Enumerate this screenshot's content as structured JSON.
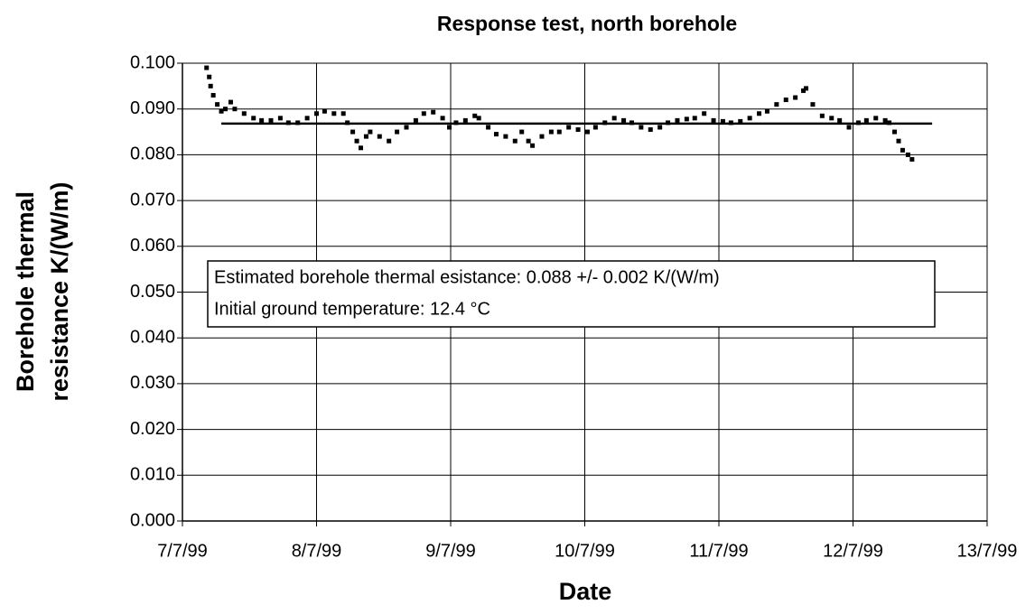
{
  "chart_data": {
    "type": "scatter",
    "title": "Response test, north borehole",
    "x_label": "Date",
    "y_label": [
      "Borehole thermal",
      "resistance K/(W/m)"
    ],
    "annotations": [
      "Estimated borehole thermal esistance: 0.088 +/- 0.002 K/(W/m)",
      "Initial ground temperature: 12.4 °C"
    ],
    "xlim": [
      7,
      13
    ],
    "xticks": [
      {
        "value": 7,
        "label": "7/7/99"
      },
      {
        "value": 8,
        "label": "8/7/99"
      },
      {
        "value": 9,
        "label": "9/7/99"
      },
      {
        "value": 10,
        "label": "10/7/99"
      },
      {
        "value": 11,
        "label": "11/7/99"
      },
      {
        "value": 12,
        "label": "12/7/99"
      },
      {
        "value": 13,
        "label": "13/7/99"
      }
    ],
    "ylim": [
      0,
      0.1
    ],
    "yticks": [
      {
        "value": 0,
        "label": "0.000"
      },
      {
        "value": 0.01,
        "label": "0.010"
      },
      {
        "value": 0.02,
        "label": "0.020"
      },
      {
        "value": 0.03,
        "label": "0.030"
      },
      {
        "value": 0.04,
        "label": "0.040"
      },
      {
        "value": 0.05,
        "label": "0.050"
      },
      {
        "value": 0.06,
        "label": "0.060"
      },
      {
        "value": 0.07,
        "label": "0.070"
      },
      {
        "value": 0.08,
        "label": "0.080"
      },
      {
        "value": 0.09,
        "label": "0.090"
      },
      {
        "value": 0.1,
        "label": "0.100"
      }
    ],
    "grid": true,
    "series": [
      {
        "color": "#000000",
        "marker": "square",
        "x": [
          7.18,
          7.2,
          7.21,
          7.23,
          7.26,
          7.29,
          7.32,
          7.36,
          7.39,
          7.46,
          7.53,
          7.59,
          7.66,
          7.73,
          7.79,
          7.86,
          7.93,
          8.0,
          8.06,
          8.13,
          8.2,
          8.23,
          8.27,
          8.3,
          8.33,
          8.37,
          8.4,
          8.47,
          8.54,
          8.6,
          8.67,
          8.74,
          8.8,
          8.87,
          8.94,
          8.99,
          9.04,
          9.11,
          9.18,
          9.21,
          9.28,
          9.34,
          9.41,
          9.48,
          9.53,
          9.58,
          9.61,
          9.68,
          9.75,
          9.81,
          9.88,
          9.95,
          10.02,
          10.08,
          10.15,
          10.22,
          10.29,
          10.35,
          10.42,
          10.49,
          10.56,
          10.62,
          10.69,
          10.76,
          10.82,
          10.89,
          10.96,
          11.03,
          11.09,
          11.16,
          11.23,
          11.3,
          11.36,
          11.43,
          11.5,
          11.57,
          11.63,
          11.65,
          11.7,
          11.77,
          11.84,
          11.9,
          11.97,
          12.04,
          12.1,
          12.17,
          12.24,
          12.27,
          12.31,
          12.34,
          12.37,
          12.41,
          12.44
        ],
        "values": [
          0.099,
          0.097,
          0.095,
          0.093,
          0.091,
          0.0895,
          0.09,
          0.0915,
          0.09,
          0.089,
          0.088,
          0.0875,
          0.0875,
          0.088,
          0.087,
          0.087,
          0.088,
          0.089,
          0.0895,
          0.089,
          0.089,
          0.087,
          0.085,
          0.083,
          0.0815,
          0.084,
          0.085,
          0.084,
          0.083,
          0.085,
          0.086,
          0.0875,
          0.089,
          0.0893,
          0.088,
          0.086,
          0.087,
          0.0875,
          0.0885,
          0.088,
          0.086,
          0.0845,
          0.084,
          0.083,
          0.085,
          0.083,
          0.082,
          0.084,
          0.085,
          0.085,
          0.086,
          0.0855,
          0.085,
          0.086,
          0.087,
          0.088,
          0.0875,
          0.087,
          0.086,
          0.0855,
          0.086,
          0.087,
          0.0875,
          0.0878,
          0.088,
          0.089,
          0.0875,
          0.0873,
          0.087,
          0.0873,
          0.088,
          0.089,
          0.0895,
          0.091,
          0.092,
          0.0925,
          0.094,
          0.0945,
          0.091,
          0.0885,
          0.088,
          0.0875,
          0.086,
          0.087,
          0.0875,
          0.088,
          0.0875,
          0.087,
          0.085,
          0.083,
          0.081,
          0.08,
          0.079
        ]
      },
      {
        "color": "#000000",
        "marker": "line",
        "x": [
          7.29,
          12.59
        ],
        "values": [
          0.0868,
          0.0868
        ]
      }
    ]
  }
}
